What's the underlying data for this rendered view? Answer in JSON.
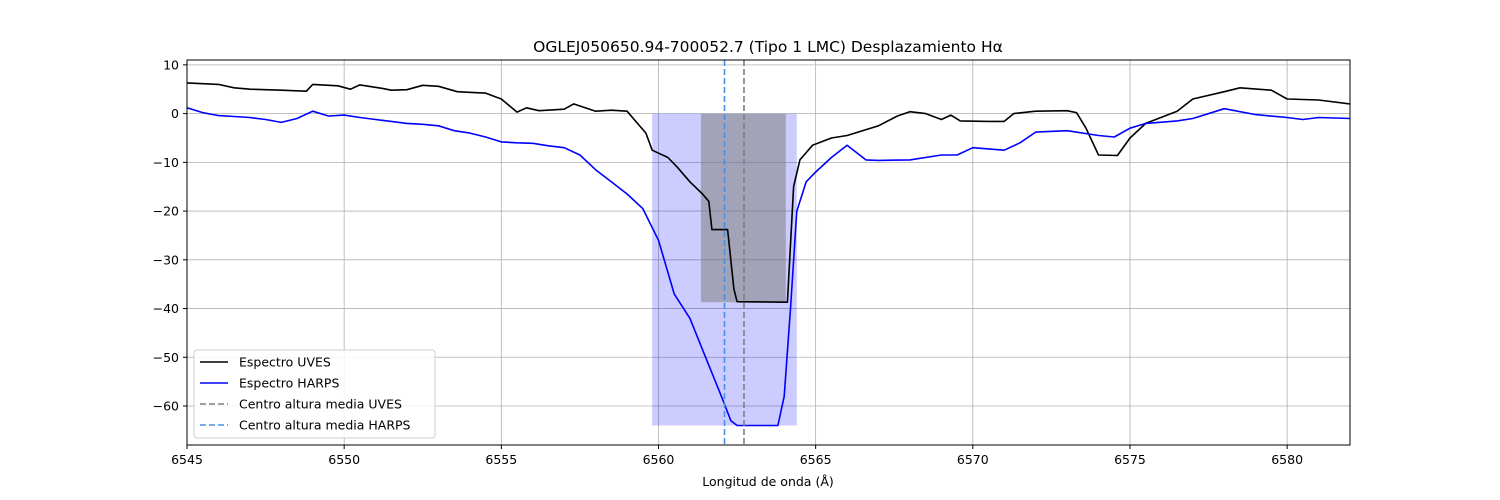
{
  "chart_data": {
    "type": "line",
    "title": "OGLEJ050650.94-700052.7 (Tipo 1 LMC) Desplazamiento Hα",
    "xlabel": "Longitud de onda (Å)",
    "ylabel": "",
    "xlim": [
      6545,
      6582
    ],
    "ylim": [
      -68,
      11
    ],
    "x_ticks": [
      6545,
      6550,
      6555,
      6560,
      6565,
      6570,
      6575,
      6580
    ],
    "y_ticks": [
      10,
      0,
      -10,
      -20,
      -30,
      -40,
      -50,
      -60
    ],
    "x_tick_labels": [
      "6545",
      "6550",
      "6555",
      "6560",
      "6565",
      "6570",
      "6575",
      "6580"
    ],
    "y_tick_labels": [
      "10",
      "0",
      "−10",
      "−20",
      "−30",
      "−40",
      "−50",
      "−60"
    ],
    "grid": true,
    "legend_position": "lower-left",
    "series": [
      {
        "name": "Espectro UVES",
        "color": "#000000",
        "style": "solid",
        "points": [
          [
            6545,
            6.3
          ],
          [
            6546,
            6.0
          ],
          [
            6546.5,
            5.3
          ],
          [
            6547,
            5.0
          ],
          [
            6548,
            4.8
          ],
          [
            6548.8,
            4.6
          ],
          [
            6549,
            6.0
          ],
          [
            6549.8,
            5.7
          ],
          [
            6550.2,
            5.0
          ],
          [
            6550.5,
            5.9
          ],
          [
            6551.2,
            5.2
          ],
          [
            6551.5,
            4.8
          ],
          [
            6552,
            4.9
          ],
          [
            6552.5,
            5.8
          ],
          [
            6553,
            5.6
          ],
          [
            6553.6,
            4.5
          ],
          [
            6554.2,
            4.3
          ],
          [
            6554.5,
            4.2
          ],
          [
            6555,
            3.0
          ],
          [
            6555.5,
            0.3
          ],
          [
            6555.8,
            1.2
          ],
          [
            6556.2,
            0.6
          ],
          [
            6557.0,
            0.9
          ],
          [
            6557.3,
            2.0
          ],
          [
            6558.0,
            0.5
          ],
          [
            6558.5,
            0.7
          ],
          [
            6559.0,
            0.5
          ],
          [
            6559.2,
            -1.0
          ],
          [
            6559.6,
            -4.0
          ],
          [
            6559.8,
            -7.5
          ],
          [
            6560.3,
            -9.0
          ],
          [
            6560.6,
            -11.0
          ],
          [
            6561.0,
            -14.0
          ],
          [
            6561.4,
            -16.5
          ],
          [
            6561.6,
            -18.0
          ],
          [
            6561.7,
            -23.8
          ],
          [
            6562.2,
            -23.8
          ],
          [
            6562.4,
            -36.0
          ],
          [
            6562.5,
            -38.6
          ],
          [
            6564.1,
            -38.7
          ],
          [
            6564.3,
            -15.0
          ],
          [
            6564.5,
            -9.5
          ],
          [
            6564.9,
            -6.5
          ],
          [
            6565.5,
            -5.0
          ],
          [
            6566.0,
            -4.5
          ],
          [
            6567.0,
            -2.5
          ],
          [
            6567.6,
            -0.5
          ],
          [
            6568.0,
            0.4
          ],
          [
            6568.5,
            0.0
          ],
          [
            6569.0,
            -1.2
          ],
          [
            6569.3,
            -0.3
          ],
          [
            6569.6,
            -1.5
          ],
          [
            6570.5,
            -1.6
          ],
          [
            6571.0,
            -1.6
          ],
          [
            6571.3,
            0.0
          ],
          [
            6572.0,
            0.5
          ],
          [
            6573.0,
            0.6
          ],
          [
            6573.3,
            0.2
          ],
          [
            6573.6,
            -3.0
          ],
          [
            6574.0,
            -8.5
          ],
          [
            6574.6,
            -8.6
          ],
          [
            6575.0,
            -5.0
          ],
          [
            6575.5,
            -2.0
          ],
          [
            6576.5,
            0.5
          ],
          [
            6577.0,
            3.0
          ],
          [
            6578.0,
            4.5
          ],
          [
            6578.5,
            5.3
          ],
          [
            6579.5,
            4.8
          ],
          [
            6580.0,
            3.0
          ],
          [
            6581.0,
            2.8
          ],
          [
            6582,
            2.0
          ]
        ]
      },
      {
        "name": "Espectro HARPS",
        "color": "#0000ff",
        "style": "solid",
        "points": [
          [
            6545,
            1.2
          ],
          [
            6545.5,
            0.2
          ],
          [
            6546,
            -0.4
          ],
          [
            6546.5,
            -0.6
          ],
          [
            6547,
            -0.8
          ],
          [
            6547.5,
            -1.2
          ],
          [
            6548,
            -1.8
          ],
          [
            6548.5,
            -1.0
          ],
          [
            6549,
            0.5
          ],
          [
            6549.5,
            -0.5
          ],
          [
            6550,
            -0.3
          ],
          [
            6550.5,
            -0.8
          ],
          [
            6551,
            -1.2
          ],
          [
            6551.5,
            -1.6
          ],
          [
            6552,
            -2.0
          ],
          [
            6552.5,
            -2.2
          ],
          [
            6553,
            -2.5
          ],
          [
            6553.5,
            -3.5
          ],
          [
            6554,
            -4.0
          ],
          [
            6554.5,
            -4.8
          ],
          [
            6555,
            -5.8
          ],
          [
            6555.5,
            -6.0
          ],
          [
            6556,
            -6.1
          ],
          [
            6556.5,
            -6.6
          ],
          [
            6557,
            -7.0
          ],
          [
            6557.5,
            -8.5
          ],
          [
            6558,
            -11.5
          ],
          [
            6558.5,
            -14.0
          ],
          [
            6559,
            -16.5
          ],
          [
            6559.5,
            -19.5
          ],
          [
            6560,
            -26.0
          ],
          [
            6560.5,
            -37.0
          ],
          [
            6561,
            -42.0
          ],
          [
            6561.5,
            -50.0
          ],
          [
            6562,
            -58.0
          ],
          [
            6562.3,
            -63.0
          ],
          [
            6562.5,
            -64.0
          ],
          [
            6563.8,
            -64.0
          ],
          [
            6564.0,
            -58.0
          ],
          [
            6564.2,
            -40.0
          ],
          [
            6564.4,
            -20.0
          ],
          [
            6564.7,
            -14.0
          ],
          [
            6565.0,
            -12.0
          ],
          [
            6565.5,
            -9.0
          ],
          [
            6566.0,
            -6.5
          ],
          [
            6566.6,
            -9.5
          ],
          [
            6567.0,
            -9.6
          ],
          [
            6568.0,
            -9.5
          ],
          [
            6569.0,
            -8.5
          ],
          [
            6569.5,
            -8.5
          ],
          [
            6570.0,
            -7.0
          ],
          [
            6571.0,
            -7.5
          ],
          [
            6571.5,
            -6.0
          ],
          [
            6572.0,
            -3.8
          ],
          [
            6573.0,
            -3.5
          ],
          [
            6574.0,
            -4.5
          ],
          [
            6574.5,
            -4.8
          ],
          [
            6575.0,
            -3.0
          ],
          [
            6575.5,
            -2.0
          ],
          [
            6576.5,
            -1.5
          ],
          [
            6577.0,
            -1.0
          ],
          [
            6578.0,
            1.0
          ],
          [
            6579.0,
            -0.2
          ],
          [
            6580.0,
            -0.8
          ],
          [
            6580.5,
            -1.2
          ],
          [
            6581.0,
            -0.8
          ],
          [
            6582,
            -1.0
          ]
        ]
      }
    ],
    "vlines": [
      {
        "name": "Centro altura media UVES",
        "x": 6562.72,
        "color": "#7f7f7f",
        "style": "dashed"
      },
      {
        "name": "Centro altura media HARPS",
        "x": 6562.1,
        "color": "#4a90e2",
        "style": "dashed"
      }
    ],
    "shaded_regions": [
      {
        "x0": 6559.8,
        "x1": 6564.4,
        "y0": -64,
        "y1": 0,
        "color": "#0000ff",
        "opacity": 0.2
      },
      {
        "x0": 6561.35,
        "x1": 6564.05,
        "y0": -38.7,
        "y1": 0,
        "color": "#7f7f7f",
        "opacity": 0.55
      }
    ]
  }
}
